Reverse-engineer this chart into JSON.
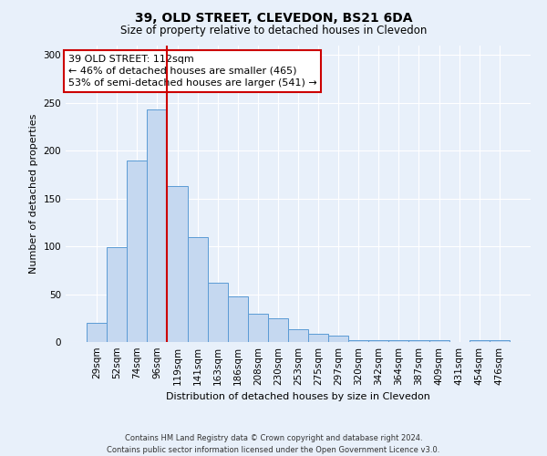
{
  "title": "39, OLD STREET, CLEVEDON, BS21 6DA",
  "subtitle": "Size of property relative to detached houses in Clevedon",
  "xlabel": "Distribution of detached houses by size in Clevedon",
  "ylabel": "Number of detached properties",
  "bar_labels": [
    "29sqm",
    "52sqm",
    "74sqm",
    "96sqm",
    "119sqm",
    "141sqm",
    "163sqm",
    "186sqm",
    "208sqm",
    "230sqm",
    "253sqm",
    "275sqm",
    "297sqm",
    "320sqm",
    "342sqm",
    "364sqm",
    "387sqm",
    "409sqm",
    "431sqm",
    "454sqm",
    "476sqm"
  ],
  "bar_values": [
    20,
    99,
    190,
    243,
    163,
    110,
    62,
    48,
    30,
    25,
    13,
    9,
    7,
    2,
    2,
    2,
    2,
    2,
    0,
    2,
    2
  ],
  "bar_color": "#c5d8f0",
  "bar_edge_color": "#5b9bd5",
  "vline_index": 4,
  "vline_color": "#cc0000",
  "ylim": [
    0,
    310
  ],
  "yticks": [
    0,
    50,
    100,
    150,
    200,
    250,
    300
  ],
  "annotation_line1": "39 OLD STREET: 112sqm",
  "annotation_line2": "← 46% of detached houses are smaller (465)",
  "annotation_line3": "53% of semi-detached houses are larger (541) →",
  "annotation_box_color": "#ffffff",
  "annotation_box_edge_color": "#cc0000",
  "footer_line1": "Contains HM Land Registry data © Crown copyright and database right 2024.",
  "footer_line2": "Contains public sector information licensed under the Open Government Licence v3.0.",
  "bg_color": "#e8f0fa",
  "plot_bg_color": "#e8f0fa",
  "grid_color": "#ffffff",
  "title_fontsize": 10,
  "subtitle_fontsize": 8.5,
  "ylabel_fontsize": 8,
  "xlabel_fontsize": 8,
  "tick_fontsize": 7.5,
  "annot_fontsize": 8,
  "footer_fontsize": 6
}
